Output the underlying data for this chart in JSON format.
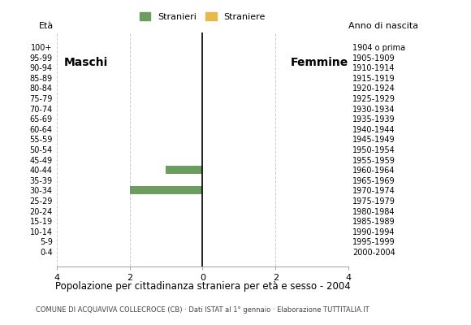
{
  "age_groups": [
    "100+",
    "95-99",
    "90-94",
    "85-89",
    "80-84",
    "75-79",
    "70-74",
    "65-69",
    "60-64",
    "55-59",
    "50-54",
    "45-49",
    "40-44",
    "35-39",
    "30-34",
    "25-29",
    "20-24",
    "15-19",
    "10-14",
    "5-9",
    "0-4"
  ],
  "birth_years": [
    "1904 o prima",
    "1905-1909",
    "1910-1914",
    "1915-1919",
    "1920-1924",
    "1925-1929",
    "1930-1934",
    "1935-1939",
    "1940-1944",
    "1945-1949",
    "1950-1954",
    "1955-1959",
    "1960-1964",
    "1965-1969",
    "1970-1974",
    "1975-1979",
    "1980-1984",
    "1985-1989",
    "1990-1994",
    "1995-1999",
    "2000-2004"
  ],
  "males_stranieri": [
    0,
    0,
    0,
    0,
    0,
    0,
    0,
    0,
    0,
    0,
    0,
    0,
    1,
    0,
    2,
    0,
    0,
    0,
    0,
    0,
    0
  ],
  "males_straniere": [
    0,
    0,
    0,
    0,
    0,
    0,
    0,
    0,
    0,
    0,
    0,
    0,
    0,
    0,
    0,
    0,
    0,
    0,
    0,
    0,
    0
  ],
  "females_stranieri": [
    0,
    0,
    0,
    0,
    0,
    0,
    0,
    0,
    0,
    0,
    0,
    0,
    0,
    0,
    0,
    0,
    0,
    0,
    0,
    0,
    0
  ],
  "females_straniere": [
    0,
    0,
    0,
    0,
    0,
    0,
    0,
    0,
    0,
    0,
    0,
    0,
    0,
    0,
    0,
    0,
    0,
    0,
    0,
    0,
    0
  ],
  "color_stranieri": "#6b9e5e",
  "color_straniere": "#e8b84b",
  "xlim": 4,
  "title": "Popolazione per cittadinanza straniera per età e sesso - 2004",
  "subtitle": "COMUNE DI ACQUAVIVA COLLECROCE (CB) · Dati ISTAT al 1° gennaio · Elaborazione TUTTITALIA.IT",
  "legend_stranieri": "Stranieri",
  "legend_straniere": "Straniere",
  "label_maschi": "Maschi",
  "label_femmine": "Femmine",
  "label_eta": "Età",
  "label_anno": "Anno di nascita",
  "xticklabels": [
    "4",
    "2",
    "0",
    "2",
    "4"
  ],
  "background_color": "#ffffff",
  "grid_color": "#cccccc"
}
